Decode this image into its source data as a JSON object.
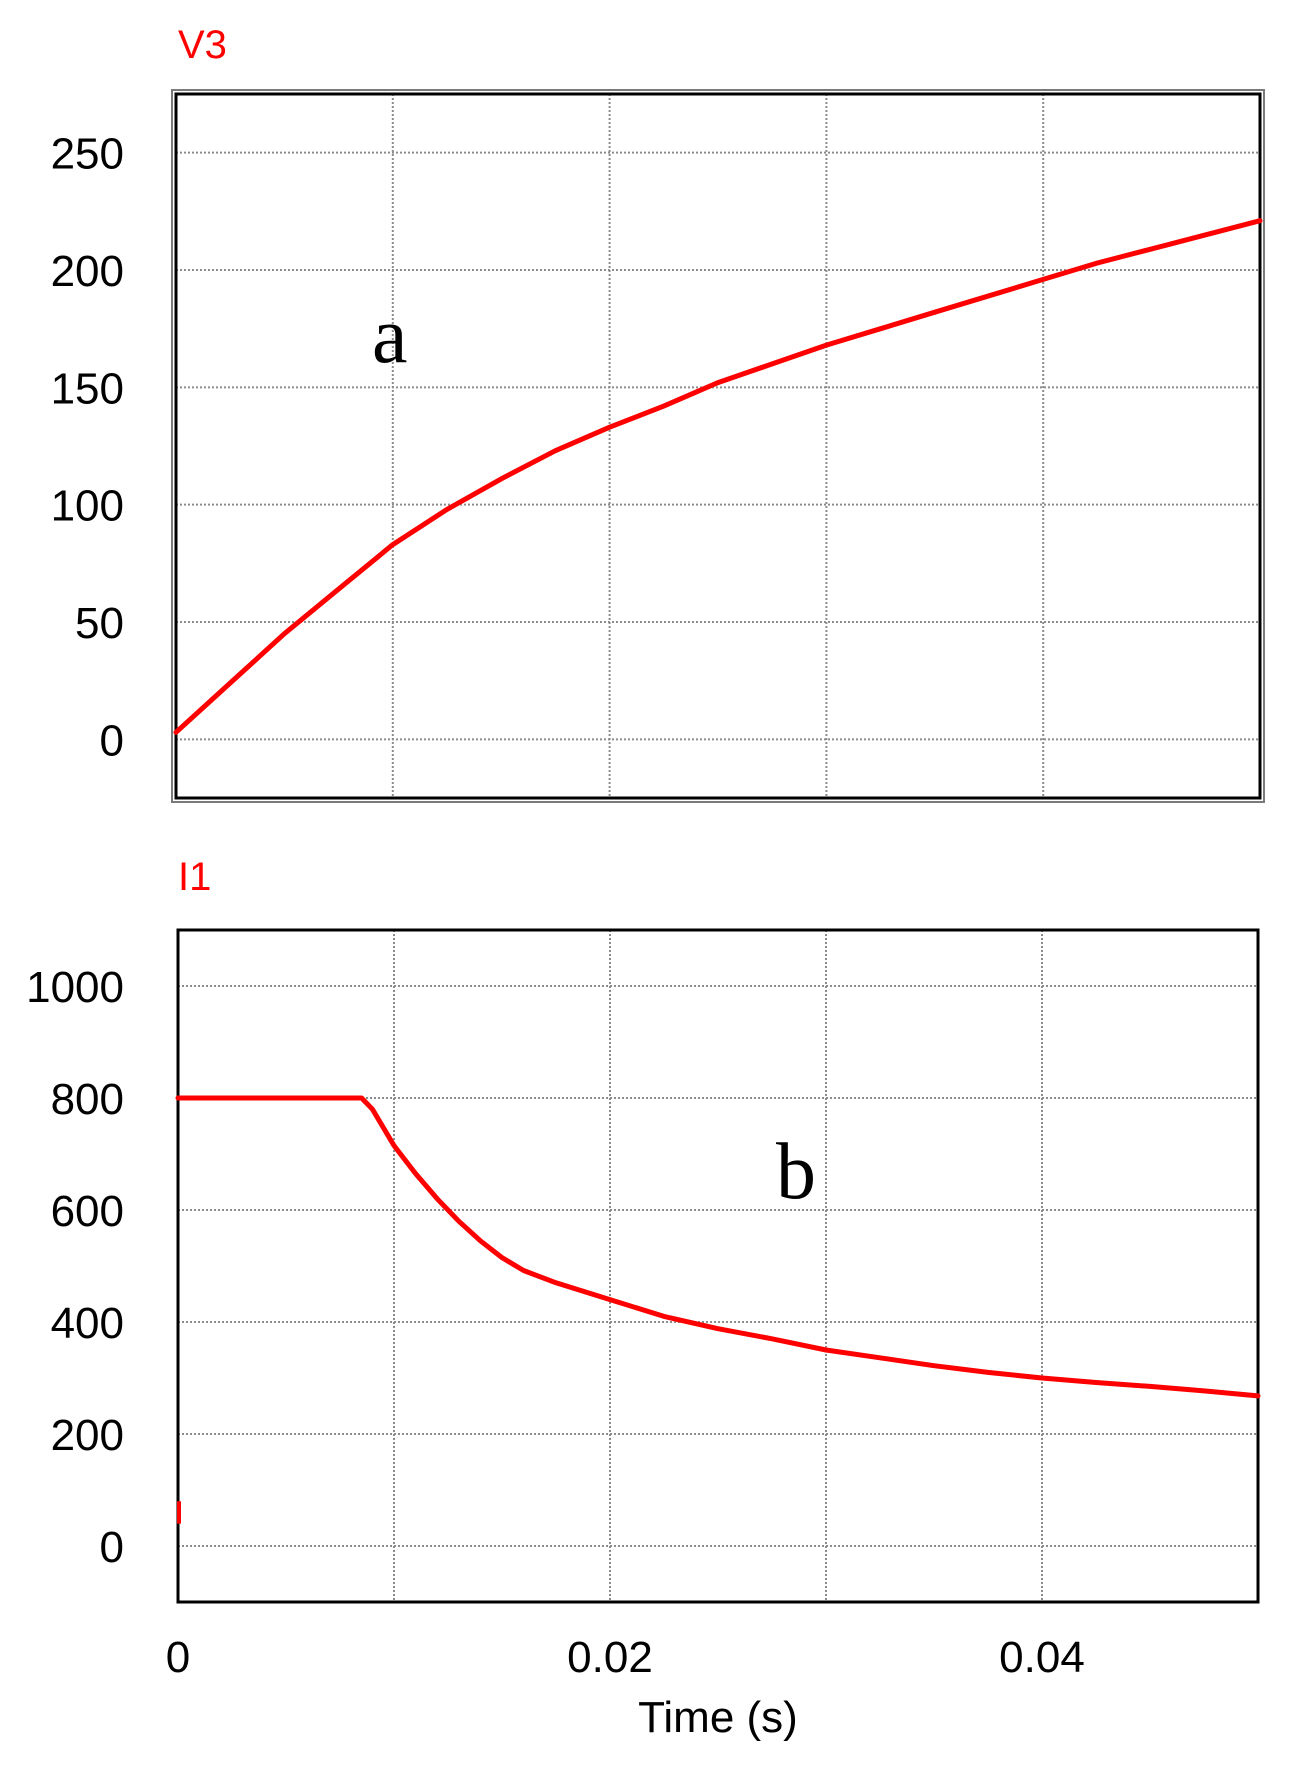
{
  "colors": {
    "trace": "#ff0000",
    "series_label": "#ff0000",
    "grid": "#8c8c8c",
    "frame": "#000000"
  },
  "xlabel": "Time (s)",
  "x_tick_labels": [
    "0",
    "0.02",
    "0.04"
  ],
  "chart_data": [
    {
      "type": "line",
      "series_label": "V3",
      "panel_label": "a",
      "xlim": [
        0,
        0.05
      ],
      "ylim": [
        -25,
        275
      ],
      "y_ticks": [
        0,
        50,
        100,
        150,
        200,
        250
      ],
      "y_tick_labels": [
        "0",
        "50",
        "100",
        "150",
        "200",
        "250"
      ],
      "x_ticks": [
        0,
        0.01,
        0.02,
        0.03,
        0.04,
        0.05
      ],
      "grid": true,
      "series": [
        {
          "x": [
            0,
            0.0025,
            0.005,
            0.0075,
            0.01,
            0.0125,
            0.015,
            0.0175,
            0.02,
            0.0225,
            0.025,
            0.0275,
            0.03,
            0.0325,
            0.035,
            0.0375,
            0.04,
            0.0425,
            0.045,
            0.0475,
            0.05
          ],
          "values": [
            3,
            24,
            45,
            64,
            83,
            98,
            111,
            123,
            133,
            142,
            152,
            160,
            168,
            175,
            182,
            189,
            196,
            203,
            209,
            215,
            221
          ]
        }
      ]
    },
    {
      "type": "line",
      "series_label": "I1",
      "panel_label": "b",
      "xlim": [
        0,
        0.05
      ],
      "ylim": [
        -100,
        1100
      ],
      "y_ticks": [
        0,
        200,
        400,
        600,
        800,
        1000
      ],
      "y_tick_labels": [
        "0",
        "200",
        "400",
        "600",
        "800",
        "1000"
      ],
      "x_ticks": [
        0,
        0.01,
        0.02,
        0.03,
        0.04,
        0.05
      ],
      "grid": true,
      "series": [
        {
          "x": [
            0,
            0.0085,
            0.009,
            0.01,
            0.011,
            0.012,
            0.013,
            0.014,
            0.015,
            0.016,
            0.0175,
            0.02,
            0.0225,
            0.025,
            0.0275,
            0.03,
            0.0325,
            0.035,
            0.0375,
            0.04,
            0.0425,
            0.045,
            0.0475,
            0.05
          ],
          "values": [
            800,
            800,
            780,
            715,
            665,
            620,
            580,
            545,
            515,
            492,
            470,
            440,
            410,
            388,
            370,
            350,
            336,
            322,
            310,
            300,
            292,
            285,
            277,
            268
          ]
        }
      ]
    }
  ]
}
